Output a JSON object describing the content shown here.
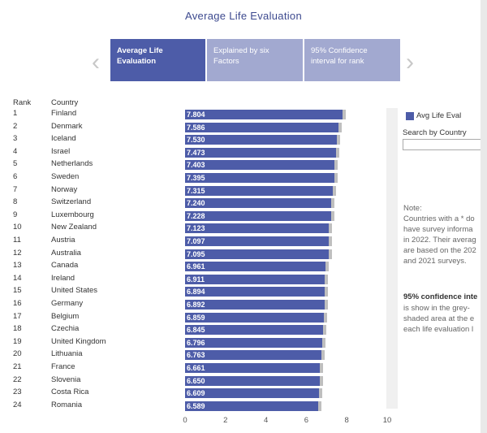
{
  "title": "Average Life Evaluation",
  "nav": {
    "prev": "‹",
    "next": "›"
  },
  "tabs": [
    {
      "label_line1": "Average Life",
      "label_line2": "Evaluation",
      "active": true
    },
    {
      "label_line1": "Explained by six",
      "label_line2": "Factors",
      "active": false
    },
    {
      "label_line1": "95% Confidence",
      "label_line2": "interval for rank",
      "active": false
    }
  ],
  "headers": {
    "rank": "Rank",
    "country": "Country"
  },
  "legend": {
    "label": "Avg Life Eval",
    "color": "#4d5ca8"
  },
  "search": {
    "label": "Search by Country",
    "value": ""
  },
  "note": {
    "lines": [
      "Note:",
      "Countries with a * do",
      "have survey informa",
      "in 2022. Their averag",
      "are based on the 202",
      "and 2021 surveys."
    ],
    "ci_lines": [
      "95% confidence inte",
      "is show in the grey-",
      "shaded area at the e",
      "each life evaluation l"
    ]
  },
  "chart_data": {
    "type": "bar",
    "orientation": "horizontal",
    "title": "Average Life Evaluation",
    "xlim": [
      0,
      10
    ],
    "xticks": [
      0,
      2,
      4,
      6,
      8,
      10
    ],
    "series": [
      {
        "name": "Avg Life Eval",
        "color": "#4d5ca8"
      }
    ],
    "rows": [
      {
        "rank": "1",
        "country": "Finland",
        "value": 7.804,
        "label": "7.804"
      },
      {
        "rank": "2",
        "country": "Denmark",
        "value": 7.586,
        "label": "7.586"
      },
      {
        "rank": "3",
        "country": "Iceland",
        "value": 7.53,
        "label": "7.530"
      },
      {
        "rank": "4",
        "country": "Israel",
        "value": 7.473,
        "label": "7.473"
      },
      {
        "rank": "5",
        "country": "Netherlands",
        "value": 7.403,
        "label": "7.403"
      },
      {
        "rank": "6",
        "country": "Sweden",
        "value": 7.395,
        "label": "7.395"
      },
      {
        "rank": "7",
        "country": "Norway",
        "value": 7.315,
        "label": "7.315"
      },
      {
        "rank": "8",
        "country": "Switzerland",
        "value": 7.24,
        "label": "7.240"
      },
      {
        "rank": "9",
        "country": "Luxembourg",
        "value": 7.228,
        "label": "7.228"
      },
      {
        "rank": "10",
        "country": "New Zealand",
        "value": 7.123,
        "label": "7.123"
      },
      {
        "rank": "11",
        "country": "Austria",
        "value": 7.097,
        "label": "7.097"
      },
      {
        "rank": "12",
        "country": "Australia",
        "value": 7.095,
        "label": "7.095"
      },
      {
        "rank": "13",
        "country": "Canada",
        "value": 6.961,
        "label": "6.961"
      },
      {
        "rank": "14",
        "country": "Ireland",
        "value": 6.911,
        "label": "6.911"
      },
      {
        "rank": "15",
        "country": "United States",
        "value": 6.894,
        "label": "6.894"
      },
      {
        "rank": "16",
        "country": "Germany",
        "value": 6.892,
        "label": "6.892"
      },
      {
        "rank": "17",
        "country": "Belgium",
        "value": 6.859,
        "label": "6.859"
      },
      {
        "rank": "18",
        "country": "Czechia",
        "value": 6.845,
        "label": "6.845"
      },
      {
        "rank": "19",
        "country": "United Kingdom",
        "value": 6.796,
        "label": "6.796"
      },
      {
        "rank": "20",
        "country": "Lithuania",
        "value": 6.763,
        "label": "6.763"
      },
      {
        "rank": "21",
        "country": "France",
        "value": 6.661,
        "label": "6.661"
      },
      {
        "rank": "22",
        "country": "Slovenia",
        "value": 6.65,
        "label": "6.650"
      },
      {
        "rank": "23",
        "country": "Costa Rica",
        "value": 6.609,
        "label": "6.609"
      },
      {
        "rank": "24",
        "country": "Romania",
        "value": 6.589,
        "label": "6.589"
      }
    ]
  }
}
